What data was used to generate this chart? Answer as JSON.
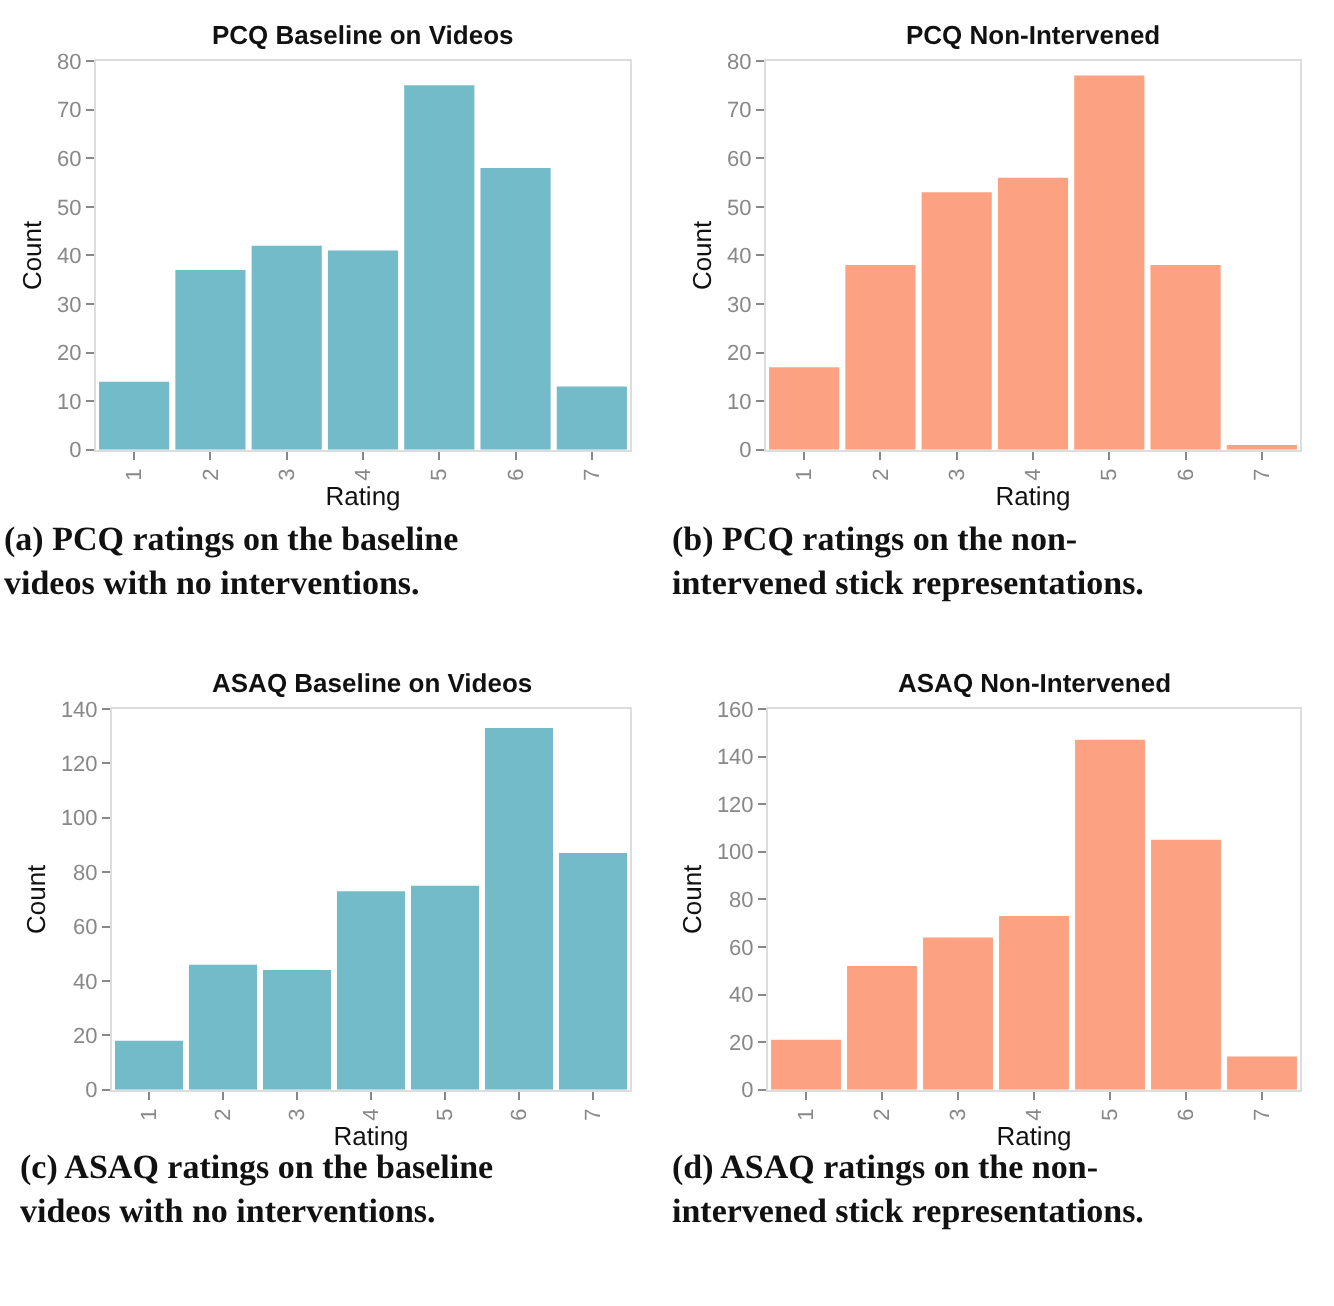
{
  "chart_data": [
    {
      "type": "bar",
      "title": "PCQ Baseline on Videos",
      "xlabel": "Rating",
      "ylabel": "Count",
      "categories": [
        "1",
        "2",
        "3",
        "4",
        "5",
        "6",
        "7"
      ],
      "values": [
        14,
        37,
        42,
        41,
        75,
        58,
        13
      ],
      "color": "#74bbc9",
      "ylim": [
        0,
        80
      ],
      "yticks": [
        0,
        10,
        20,
        30,
        40,
        50,
        60,
        70,
        80
      ],
      "grid": false,
      "legend": false,
      "annotations": [
        "(a) PCQ ratings on the baseline\nvideos with no interventions."
      ]
    },
    {
      "type": "bar",
      "title": "PCQ Non-Intervened",
      "xlabel": "Rating",
      "ylabel": "Count",
      "categories": [
        "1",
        "2",
        "3",
        "4",
        "5",
        "6",
        "7"
      ],
      "values": [
        17,
        38,
        53,
        56,
        77,
        38,
        1
      ],
      "color": "#fca283",
      "ylim": [
        0,
        80
      ],
      "yticks": [
        0,
        10,
        20,
        30,
        40,
        50,
        60,
        70,
        80
      ],
      "grid": false,
      "legend": false,
      "annotations": [
        "(b) PCQ ratings on the non-\nintervened stick representations."
      ]
    },
    {
      "type": "bar",
      "title": "ASAQ Baseline on Videos",
      "xlabel": "Rating",
      "ylabel": "Count",
      "categories": [
        "1",
        "2",
        "3",
        "4",
        "5",
        "6",
        "7"
      ],
      "values": [
        18,
        46,
        44,
        73,
        75,
        133,
        87
      ],
      "color": "#74bbc9",
      "ylim": [
        0,
        140
      ],
      "yticks": [
        0,
        20,
        40,
        60,
        80,
        100,
        120,
        140
      ],
      "grid": false,
      "legend": false,
      "annotations": [
        "(c) ASAQ ratings on the baseline\nvideos with no interventions."
      ]
    },
    {
      "type": "bar",
      "title": "ASAQ Non-Intervened",
      "xlabel": "Rating",
      "ylabel": "Count",
      "categories": [
        "1",
        "2",
        "3",
        "4",
        "5",
        "6",
        "7"
      ],
      "values": [
        21,
        52,
        64,
        73,
        147,
        105,
        14
      ],
      "color": "#fca283",
      "ylim": [
        0,
        160
      ],
      "yticks": [
        0,
        20,
        40,
        60,
        80,
        100,
        120,
        140,
        160
      ],
      "grid": false,
      "legend": false,
      "annotations": [
        "(d) ASAQ ratings on the non-\nintervened stick representations."
      ]
    }
  ]
}
